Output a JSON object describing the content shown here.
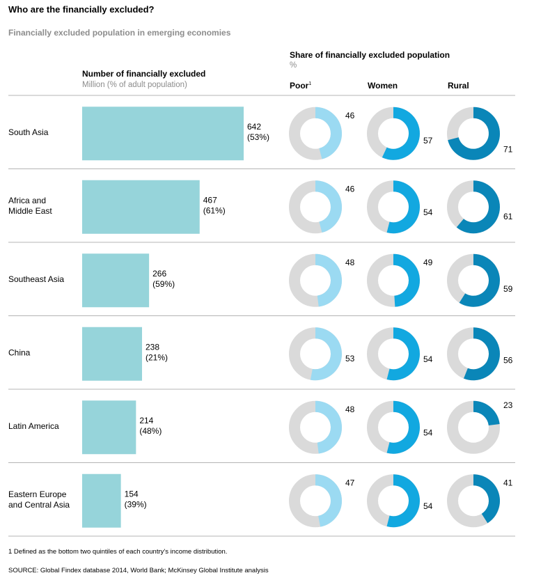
{
  "title": "Who are the financially excluded?",
  "subtitle": "Financially excluded population in emerging economies",
  "bar_header": "Number of financially excluded",
  "bar_subheader": "Million (% of adult population)",
  "share_header": "Share of financially excluded population",
  "share_unit": "%",
  "columns": {
    "poor": "Poor",
    "poor_sup": "1",
    "women": "Women",
    "rural": "Rural"
  },
  "footnote": "1  Defined as the bottom two quintiles of each country's income distribution.",
  "source": "SOURCE: Global Findex database 2014, World Bank; McKinsey Global Institute analysis",
  "colors": {
    "bar": "#96d4da",
    "poor": "#9bdaf2",
    "women": "#12a8e0",
    "rural": "#0a86b8",
    "donut_remainder": "#dadada",
    "divider": "#b4b4b4"
  },
  "chart_data": [
    {
      "type": "bar",
      "orientation": "horizontal",
      "title": "Number of financially excluded",
      "categories": [
        "South Asia",
        "Africa and Middle East",
        "Southeast Asia",
        "China",
        "Latin America",
        "Eastern Europe and Central Asia"
      ],
      "category_lines": [
        [
          "South Asia"
        ],
        [
          "Africa and",
          "Middle East"
        ],
        [
          "Southeast Asia"
        ],
        [
          "China"
        ],
        [
          "Latin America"
        ],
        [
          "Eastern Europe",
          "and Central Asia"
        ]
      ],
      "values": [
        642,
        467,
        266,
        238,
        214,
        154
      ],
      "value_labels": [
        "642",
        "467",
        "266",
        "238",
        "214",
        "154"
      ],
      "secondary_labels": [
        "(53%)",
        "(61%)",
        "(59%)",
        "(21%)",
        "(48%)",
        "(39%)"
      ],
      "unit": "Million (% of adult population)"
    },
    {
      "type": "pie",
      "style": "donut",
      "title": "Share of financially excluded population",
      "categories": [
        "South Asia",
        "Africa and Middle East",
        "Southeast Asia",
        "China",
        "Latin America",
        "Eastern Europe and Central Asia"
      ],
      "series": [
        {
          "name": "Poor",
          "values": [
            46,
            46,
            48,
            53,
            48,
            47
          ]
        },
        {
          "name": "Women",
          "values": [
            57,
            54,
            49,
            54,
            54,
            54
          ]
        },
        {
          "name": "Rural",
          "values": [
            71,
            61,
            59,
            56,
            23,
            41
          ]
        }
      ]
    }
  ]
}
